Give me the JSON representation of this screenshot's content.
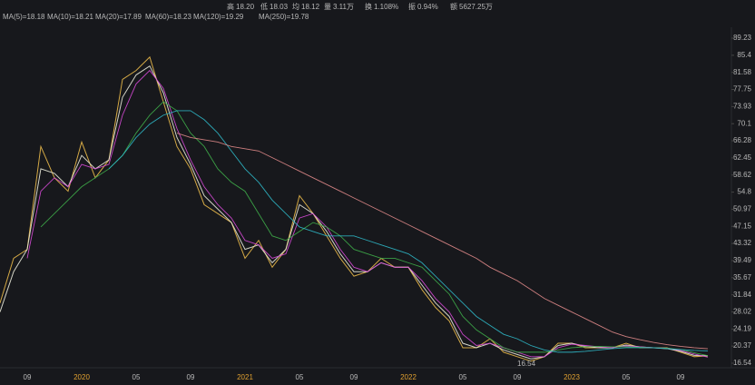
{
  "chart_data": {
    "type": "line",
    "quote": [
      {
        "label": "高",
        "value": "18.20",
        "color": "#e8424f"
      },
      {
        "label": "低",
        "value": "18.03",
        "color": "#3fc06a"
      },
      {
        "label": "均",
        "value": "18.12",
        "color": "#e8424f"
      },
      {
        "label": "量",
        "value": "3.11万",
        "color": "#d8d8d8"
      },
      {
        "label": "换",
        "value": "1.108%",
        "color": "#d8d8d8"
      },
      {
        "label": "振",
        "value": "0.94%",
        "color": "#d8d8d8"
      },
      {
        "label": "额",
        "value": "5627.25万",
        "color": "#d8d8d8"
      }
    ],
    "categories": [
      null,
      null,
      "09",
      null,
      null,
      null,
      "2020",
      null,
      null,
      null,
      "05",
      null,
      null,
      null,
      "09",
      null,
      null,
      null,
      "2021",
      null,
      null,
      null,
      "05",
      null,
      null,
      null,
      "09",
      null,
      null,
      null,
      "2022",
      null,
      null,
      null,
      "05",
      null,
      null,
      null,
      "09",
      null,
      null,
      null,
      "2023",
      null,
      null,
      null,
      "05",
      null,
      null,
      null,
      "09",
      null,
      null
    ],
    "series": [
      {
        "name": "MA(5)=18.18",
        "color": "#e8b84a",
        "values": [
          30,
          40,
          42,
          65,
          58,
          55,
          66,
          58,
          62,
          80,
          82,
          85,
          75,
          65,
          60,
          52,
          50,
          48,
          40,
          44,
          38,
          42,
          54,
          50,
          45,
          40,
          36,
          37,
          40,
          38,
          38,
          33,
          29,
          26,
          20,
          20,
          22,
          19,
          18,
          17,
          18,
          21,
          21,
          20,
          20,
          20,
          21,
          20,
          20,
          20,
          19,
          18,
          18.18
        ]
      },
      {
        "name": "MA(10)=18.21",
        "color": "#e8e8d8",
        "values": [
          28,
          37,
          42,
          60,
          59,
          56,
          63,
          60,
          62,
          76,
          81,
          83,
          77,
          67,
          61,
          54,
          51,
          48,
          42,
          43,
          39,
          42,
          52,
          50,
          46,
          41,
          37,
          37,
          39,
          38,
          38,
          34,
          30,
          27,
          21,
          20,
          21,
          19.5,
          18.5,
          17.5,
          18,
          20.5,
          21,
          20.3,
          20,
          20,
          20.6,
          20.2,
          20,
          19.8,
          19.2,
          18.3,
          18.21
        ]
      },
      {
        "name": "MA(20)=17.89",
        "color": "#d84ad8",
        "values": [
          null,
          null,
          40,
          55,
          58,
          56,
          61,
          60,
          61,
          72,
          79,
          82,
          78,
          69,
          62,
          56,
          52,
          49,
          44,
          43,
          40,
          41,
          49,
          50,
          47,
          42,
          38,
          37,
          39,
          38,
          38,
          35,
          31,
          28,
          23,
          20.5,
          21,
          20,
          19,
          18,
          18,
          20,
          20.8,
          20.5,
          20.2,
          20,
          20.4,
          20.2,
          20,
          19.9,
          19.4,
          18.6,
          17.89
        ]
      },
      {
        "name": "MA(60)=18.23",
        "color": "#3fae4a",
        "values": [
          null,
          null,
          null,
          47,
          50,
          53,
          56,
          58,
          60,
          63,
          68,
          72,
          75,
          73,
          68,
          65,
          60,
          57,
          55,
          50,
          45,
          44,
          46,
          48,
          47,
          45,
          42,
          41,
          40,
          40,
          39,
          38,
          35,
          32,
          27,
          24,
          22,
          20,
          19,
          19,
          19,
          19.5,
          20,
          20.2,
          20.3,
          20.2,
          20.2,
          20.1,
          20,
          19.9,
          19.6,
          18.9,
          18.23
        ]
      },
      {
        "name": "MA(120)=19.29",
        "color": "#2fb8c8",
        "values": [
          null,
          null,
          null,
          null,
          null,
          null,
          null,
          null,
          60,
          63,
          67,
          70,
          72,
          73,
          73,
          71,
          68,
          64,
          60,
          57,
          53,
          50,
          47,
          46,
          45,
          45,
          45,
          44,
          43,
          42,
          41,
          39,
          36,
          33,
          30,
          27,
          25,
          23,
          22,
          20.5,
          19.5,
          19,
          19,
          19.2,
          19.5,
          19.8,
          20,
          20,
          20,
          19.8,
          19.6,
          19.4,
          19.29
        ]
      },
      {
        "name": "MA(250)=19.78",
        "color": "#e08a8a",
        "values": [
          null,
          null,
          null,
          null,
          null,
          null,
          null,
          null,
          null,
          null,
          null,
          null,
          null,
          68,
          67,
          66.5,
          66,
          65,
          64.5,
          64,
          62.5,
          61,
          59.5,
          58,
          56.5,
          55,
          53.5,
          52,
          50.5,
          49,
          47.5,
          46,
          44.5,
          43,
          41.5,
          40,
          38,
          36.5,
          35,
          33,
          31,
          29.5,
          28,
          26.5,
          25,
          23.5,
          22.5,
          21.8,
          21.2,
          20.7,
          20.3,
          20,
          19.78
        ]
      }
    ],
    "annotation": "16.54",
    "ylim": [
      16.54,
      89.23
    ],
    "yticks": [
      89.23,
      85.4,
      81.58,
      77.75,
      73.93,
      70.1,
      66.28,
      62.45,
      58.62,
      54.8,
      50.97,
      47.15,
      43.32,
      39.49,
      35.67,
      31.84,
      28.02,
      24.19,
      20.37,
      16.54
    ],
    "grid": false
  }
}
